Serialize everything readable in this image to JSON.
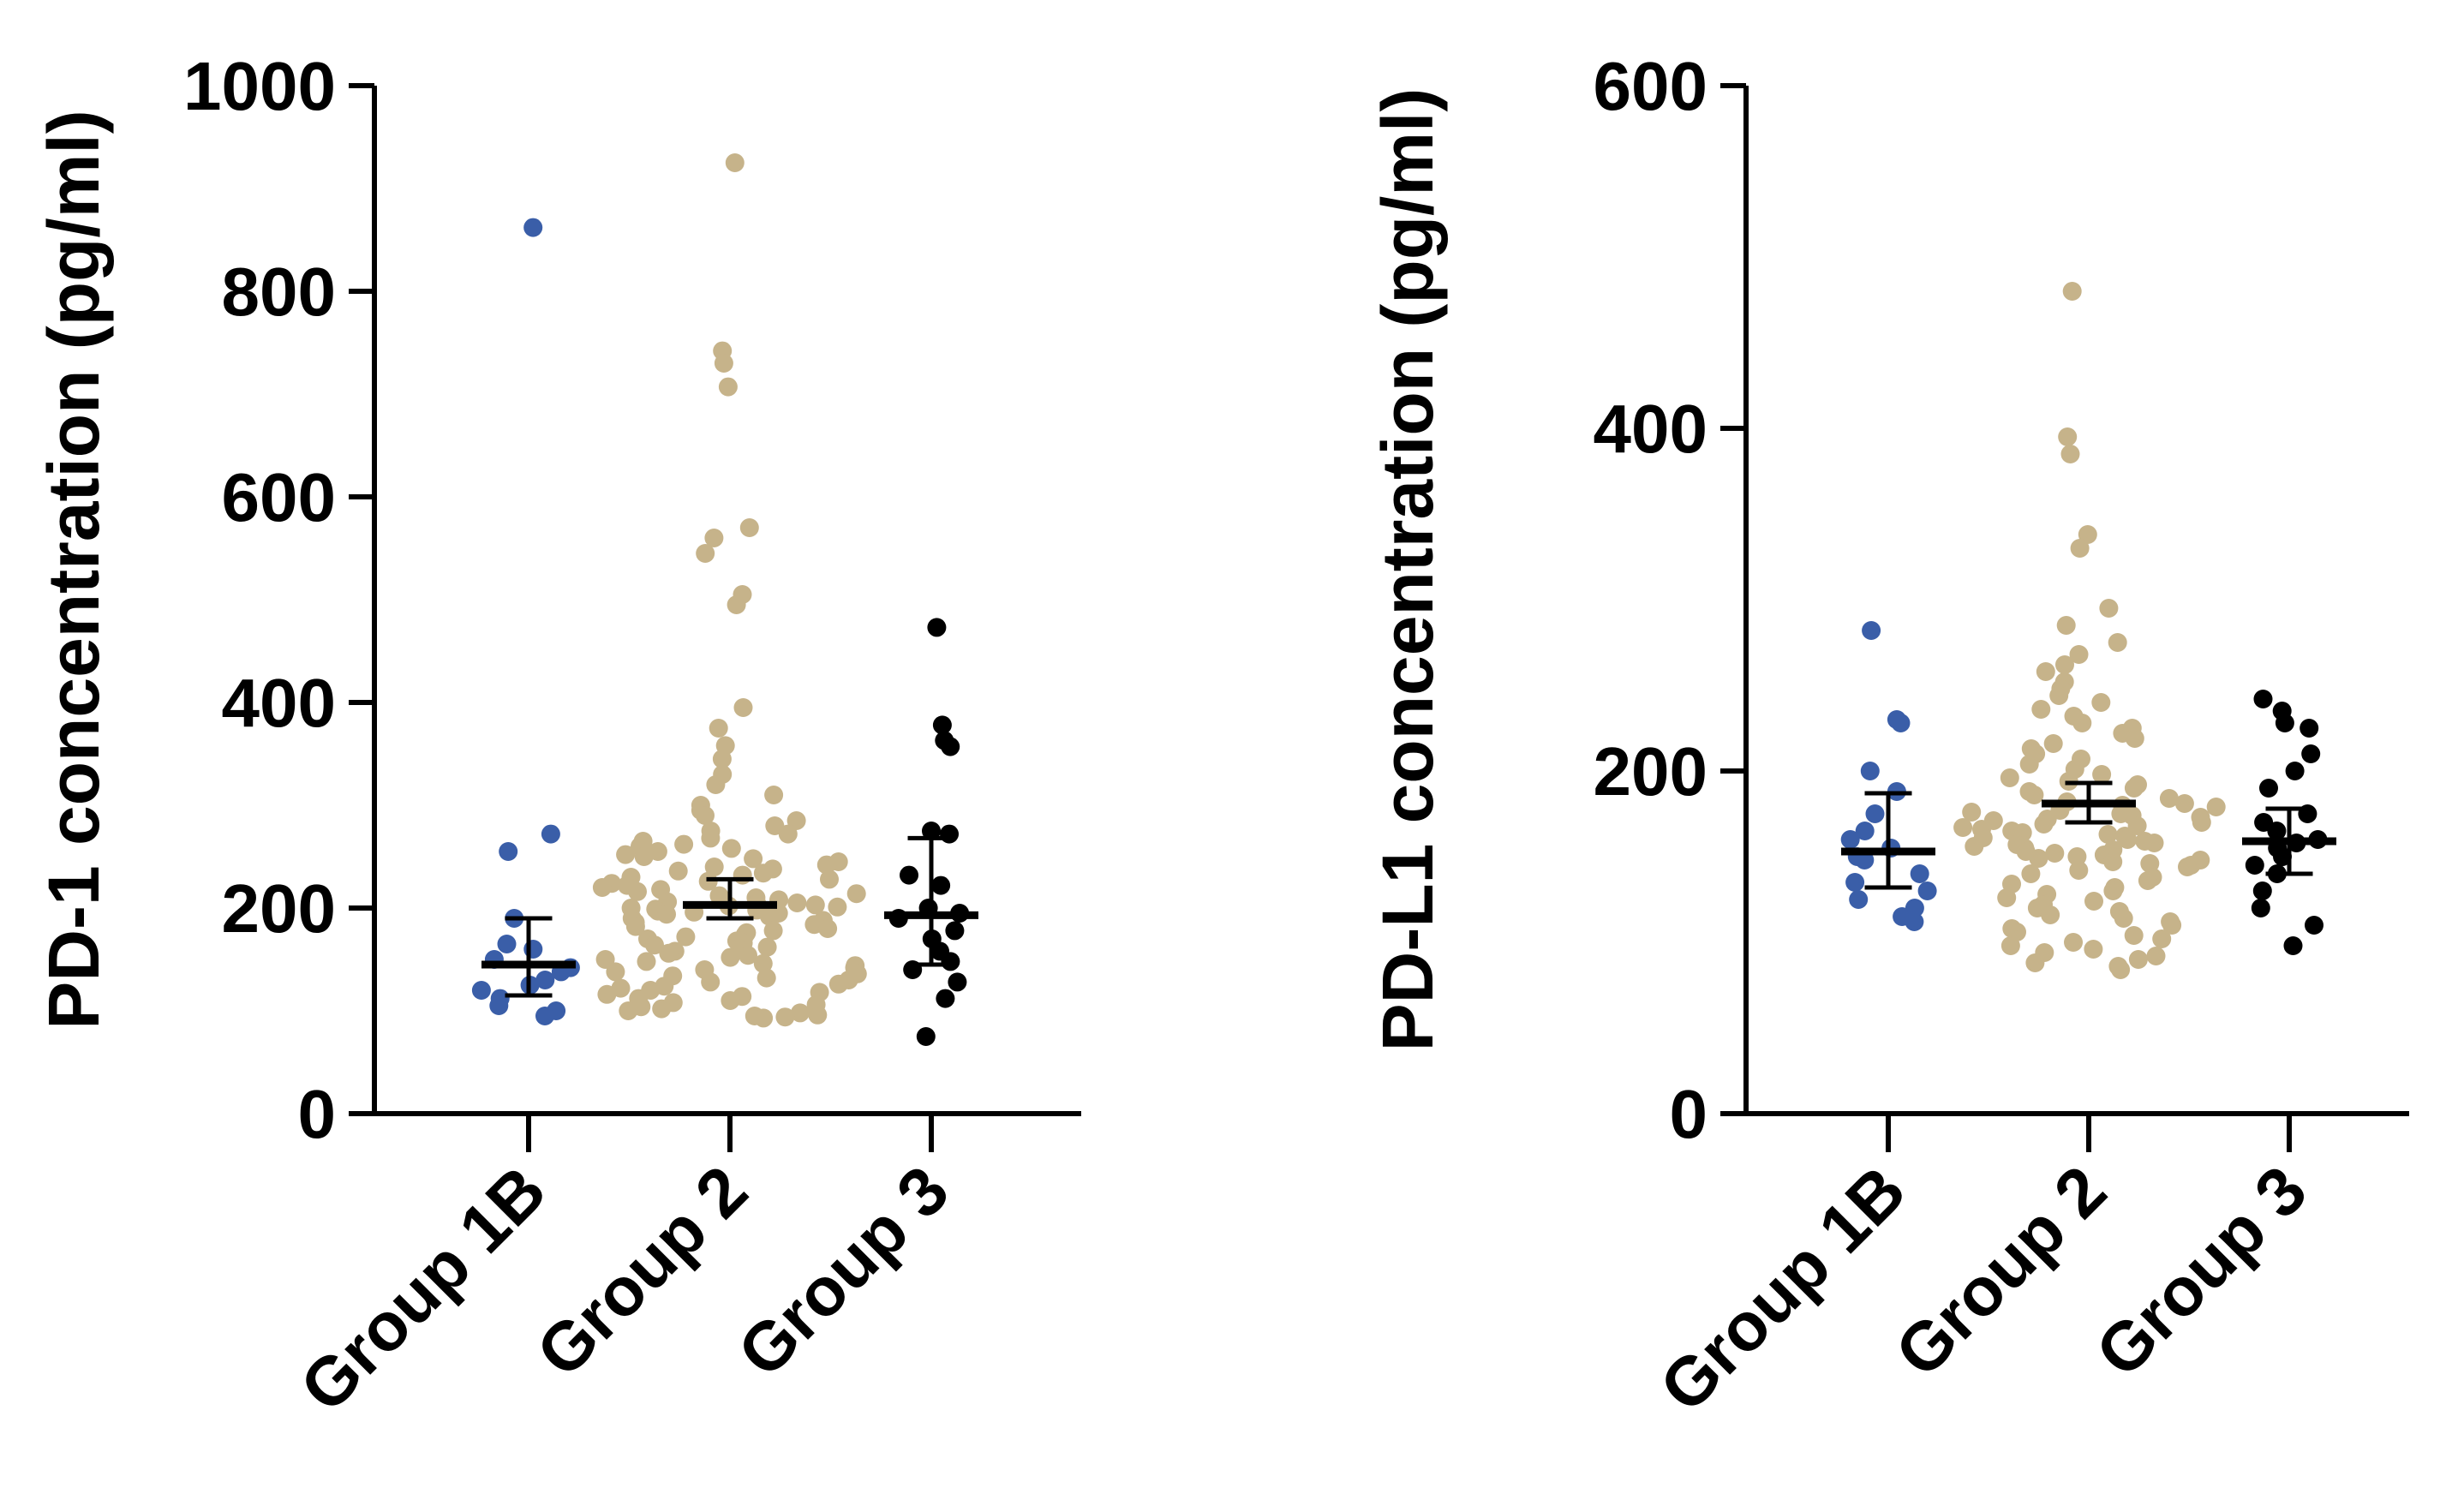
{
  "chart_data": [
    {
      "type": "scatter",
      "subtype": "dot-plot-with-median-and-95ci",
      "ylabel": "PD-1 concentration (pg/ml)",
      "xlabel": "",
      "ylim": [
        0,
        1000
      ],
      "yticks": [
        0,
        200,
        400,
        600,
        800,
        1000
      ],
      "grid": false,
      "legend": "none",
      "categories": [
        "Group 1B",
        "Group 2",
        "Group 3"
      ],
      "series": [
        {
          "name": "Group 1B",
          "color": "#3a5ea8",
          "median": 145,
          "ci": [
            115,
            190
          ],
          "values": [
            862,
            272,
            255,
            190,
            165,
            160,
            150,
            142,
            138,
            130,
            125,
            120,
            112,
            105,
            100,
            95
          ]
        },
        {
          "name": "Group 2",
          "color": "#c6b38a",
          "median": 203,
          "ci": [
            190,
            228
          ],
          "values": [
            925,
            742,
            730,
            707,
            570,
            560,
            545,
            505,
            495,
            395,
            375,
            358,
            345,
            330,
            320,
            310,
            300,
            295,
            290,
            285,
            280,
            275,
            272,
            268,
            265,
            262,
            260,
            258,
            255,
            252,
            250,
            248,
            245,
            242,
            240,
            238,
            236,
            234,
            232,
            230,
            228,
            226,
            224,
            222,
            220,
            218,
            216,
            214,
            212,
            210,
            208,
            206,
            205,
            204,
            203,
            202,
            201,
            200,
            199,
            198,
            197,
            196,
            195,
            194,
            192,
            190,
            188,
            186,
            184,
            182,
            180,
            178,
            176,
            174,
            172,
            170,
            168,
            166,
            164,
            162,
            160,
            158,
            156,
            154,
            152,
            150,
            148,
            146,
            144,
            142,
            140,
            138,
            136,
            134,
            132,
            130,
            128,
            126,
            124,
            122,
            120,
            118,
            116,
            114,
            112,
            110,
            108,
            106,
            104,
            102,
            100,
            98,
            96,
            95,
            94,
            93
          ]
        },
        {
          "name": "Group 3",
          "color": "#000000",
          "median": 193,
          "ci": [
            145,
            268
          ],
          "values": [
            473,
            378,
            363,
            357,
            275,
            272,
            232,
            222,
            200,
            195,
            190,
            178,
            170,
            158,
            148,
            140,
            128,
            112,
            75
          ]
        }
      ]
    },
    {
      "type": "scatter",
      "subtype": "dot-plot-with-median-and-95ci",
      "ylabel": "PD-L1 concentration (pg/ml)",
      "xlabel": "",
      "ylim": [
        0,
        600
      ],
      "yticks": [
        0,
        200,
        400,
        600
      ],
      "grid": false,
      "legend": "none",
      "categories": [
        "Group 1B",
        "Group 2",
        "Group 3"
      ],
      "series": [
        {
          "name": "Group 1B",
          "color": "#3a5ea8",
          "median": 153,
          "ci": [
            132,
            187
          ],
          "values": [
            282,
            230,
            228,
            200,
            188,
            175,
            165,
            160,
            155,
            150,
            148,
            140,
            135,
            130,
            125,
            120,
            115,
            112
          ]
        },
        {
          "name": "Group 2",
          "color": "#c6b38a",
          "median": 181,
          "ci": [
            170,
            193
          ],
          "values": [
            480,
            395,
            385,
            338,
            330,
            295,
            285,
            275,
            268,
            262,
            258,
            252,
            248,
            244,
            240,
            236,
            232,
            228,
            225,
            222,
            219,
            216,
            213,
            210,
            207,
            204,
            201,
            198,
            196,
            194,
            192,
            190,
            188,
            186,
            184,
            182,
            181,
            180,
            179,
            178,
            177,
            176,
            175,
            174,
            173,
            172,
            171,
            170,
            169,
            168,
            167,
            166,
            165,
            164,
            163,
            162,
            161,
            160,
            159,
            158,
            157,
            156,
            155,
            154,
            153,
            152,
            151,
            150,
            149,
            148,
            147,
            146,
            145,
            144,
            142,
            140,
            138,
            136,
            134,
            132,
            130,
            128,
            126,
            124,
            122,
            120,
            118,
            116,
            114,
            112,
            110,
            108,
            106,
            104,
            102,
            100,
            98,
            96,
            94,
            92,
            90,
            88,
            86,
            84
          ]
        },
        {
          "name": "Group 3",
          "color": "#000000",
          "median": 159,
          "ci": [
            140,
            178
          ],
          "values": [
            242,
            235,
            228,
            225,
            210,
            200,
            190,
            175,
            170,
            165,
            160,
            158,
            155,
            150,
            145,
            140,
            130,
            120,
            110,
            98
          ]
        }
      ]
    }
  ]
}
